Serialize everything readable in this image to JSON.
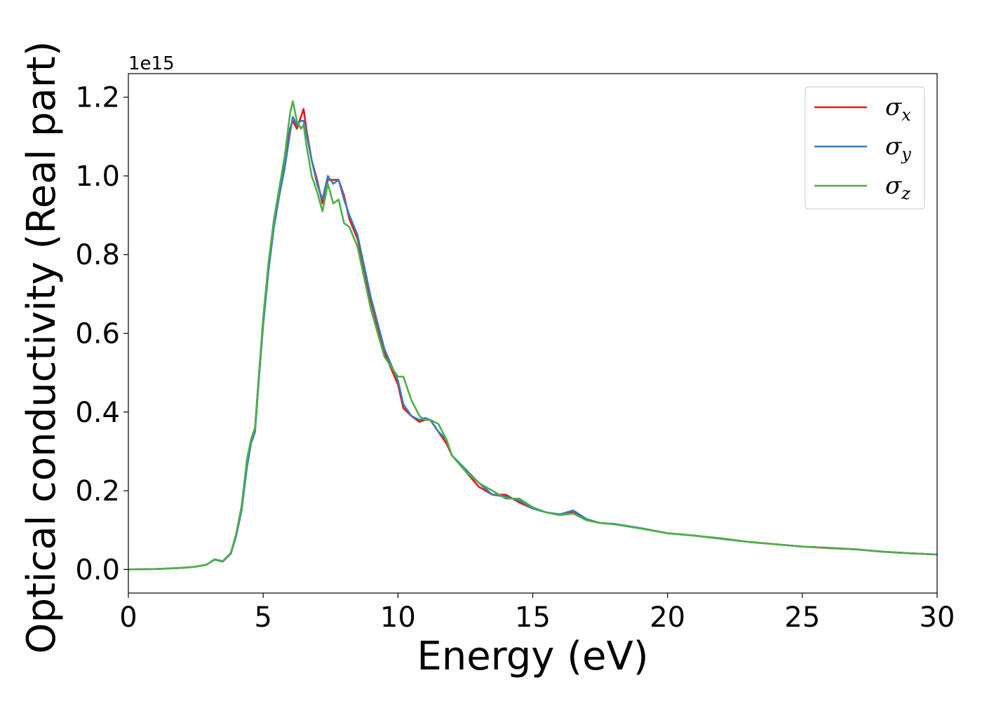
{
  "chart_data": {
    "type": "line",
    "xlabel": "Energy (eV)",
    "ylabel": "Optical conductivity (Real part)",
    "y_offset_text": "1e15",
    "xlim": [
      0,
      30
    ],
    "ylim": [
      -0.06,
      1.26
    ],
    "x_ticks": [
      0,
      5,
      10,
      15,
      20,
      25,
      30
    ],
    "x_tick_labels": [
      "0",
      "5",
      "10",
      "15",
      "20",
      "25",
      "30"
    ],
    "y_ticks": [
      0.0,
      0.2,
      0.4,
      0.6,
      0.8,
      1.0,
      1.2
    ],
    "y_tick_labels": [
      "0.0",
      "0.2",
      "0.4",
      "0.6",
      "0.8",
      "1.0",
      "1.2"
    ],
    "grid": false,
    "legend_position": "top-right",
    "series": [
      {
        "name": "σx",
        "symbol": "σ",
        "subscript": "x",
        "color": "#e41a1c",
        "x": [
          0,
          1,
          2,
          2.5,
          2.9,
          3.2,
          3.5,
          3.8,
          4.0,
          4.2,
          4.4,
          4.55,
          4.7,
          4.85,
          5.0,
          5.2,
          5.4,
          5.6,
          5.8,
          6.0,
          6.1,
          6.25,
          6.4,
          6.5,
          6.6,
          6.8,
          7.0,
          7.2,
          7.4,
          7.6,
          7.8,
          8.0,
          8.2,
          8.5,
          9.0,
          9.5,
          10.0,
          10.2,
          10.5,
          10.8,
          11.0,
          11.2,
          11.5,
          11.8,
          12.0,
          12.5,
          13.0,
          13.5,
          14.0,
          14.5,
          15.0,
          15.5,
          16.0,
          16.5,
          17.0,
          17.5,
          18.0,
          19.0,
          20.0,
          21.0,
          22.0,
          23.0,
          24.0,
          25.0,
          26.0,
          27.0,
          28.0,
          29.0,
          30.0
        ],
        "y": [
          0.0,
          0.001,
          0.004,
          0.007,
          0.012,
          0.025,
          0.02,
          0.04,
          0.09,
          0.16,
          0.27,
          0.33,
          0.36,
          0.5,
          0.63,
          0.77,
          0.88,
          0.96,
          1.03,
          1.12,
          1.14,
          1.12,
          1.15,
          1.17,
          1.12,
          1.04,
          0.99,
          0.93,
          0.99,
          0.99,
          0.99,
          0.95,
          0.89,
          0.84,
          0.68,
          0.55,
          0.47,
          0.41,
          0.39,
          0.375,
          0.38,
          0.38,
          0.35,
          0.32,
          0.29,
          0.25,
          0.21,
          0.19,
          0.19,
          0.17,
          0.155,
          0.145,
          0.14,
          0.145,
          0.125,
          0.118,
          0.115,
          0.105,
          0.092,
          0.086,
          0.078,
          0.07,
          0.064,
          0.058,
          0.054,
          0.051,
          0.045,
          0.041,
          0.038
        ]
      },
      {
        "name": "σy",
        "symbol": "σ",
        "subscript": "y",
        "color": "#377eb8",
        "x": [
          0,
          1,
          2,
          2.5,
          2.9,
          3.2,
          3.5,
          3.8,
          4.0,
          4.2,
          4.4,
          4.55,
          4.7,
          4.85,
          5.0,
          5.2,
          5.4,
          5.6,
          5.8,
          6.0,
          6.1,
          6.25,
          6.4,
          6.5,
          6.6,
          6.8,
          7.0,
          7.2,
          7.4,
          7.6,
          7.8,
          8.0,
          8.2,
          8.5,
          9.0,
          9.5,
          10.0,
          10.2,
          10.5,
          10.8,
          11.0,
          11.2,
          11.5,
          11.8,
          12.0,
          12.5,
          13.0,
          13.5,
          14.0,
          14.5,
          15.0,
          15.5,
          16.0,
          16.5,
          17.0,
          17.5,
          18.0,
          19.0,
          20.0,
          21.0,
          22.0,
          23.0,
          24.0,
          25.0,
          26.0,
          27.0,
          28.0,
          29.0,
          30.0
        ],
        "y": [
          0.0,
          0.001,
          0.004,
          0.007,
          0.012,
          0.025,
          0.02,
          0.04,
          0.085,
          0.15,
          0.26,
          0.32,
          0.35,
          0.49,
          0.62,
          0.76,
          0.87,
          0.95,
          1.02,
          1.11,
          1.15,
          1.13,
          1.14,
          1.14,
          1.11,
          1.04,
          0.98,
          0.94,
          1.0,
          0.98,
          0.99,
          0.94,
          0.9,
          0.85,
          0.69,
          0.56,
          0.48,
          0.42,
          0.39,
          0.38,
          0.385,
          0.38,
          0.35,
          0.33,
          0.29,
          0.255,
          0.22,
          0.19,
          0.185,
          0.175,
          0.155,
          0.145,
          0.14,
          0.15,
          0.128,
          0.118,
          0.116,
          0.105,
          0.092,
          0.086,
          0.078,
          0.07,
          0.064,
          0.058,
          0.055,
          0.051,
          0.045,
          0.041,
          0.038
        ]
      },
      {
        "name": "σz",
        "symbol": "σ",
        "subscript": "z",
        "color": "#4daf4a",
        "x": [
          0,
          1,
          2,
          2.5,
          2.9,
          3.2,
          3.5,
          3.8,
          4.0,
          4.2,
          4.4,
          4.55,
          4.7,
          4.85,
          5.0,
          5.2,
          5.4,
          5.6,
          5.8,
          6.0,
          6.1,
          6.25,
          6.4,
          6.5,
          6.6,
          6.8,
          7.0,
          7.2,
          7.4,
          7.6,
          7.8,
          8.0,
          8.2,
          8.5,
          9.0,
          9.5,
          10.0,
          10.2,
          10.5,
          10.8,
          11.0,
          11.2,
          11.5,
          11.8,
          12.0,
          12.5,
          13.0,
          13.5,
          14.0,
          14.5,
          15.0,
          15.5,
          16.0,
          16.5,
          17.0,
          17.5,
          18.0,
          19.0,
          20.0,
          21.0,
          22.0,
          23.0,
          24.0,
          25.0,
          26.0,
          27.0,
          28.0,
          29.0,
          30.0
        ],
        "y": [
          0.0,
          0.001,
          0.004,
          0.007,
          0.012,
          0.026,
          0.021,
          0.042,
          0.09,
          0.16,
          0.28,
          0.33,
          0.36,
          0.5,
          0.64,
          0.78,
          0.89,
          0.97,
          1.05,
          1.16,
          1.19,
          1.14,
          1.12,
          1.13,
          1.08,
          1.0,
          0.96,
          0.91,
          0.98,
          0.93,
          0.94,
          0.88,
          0.87,
          0.82,
          0.66,
          0.54,
          0.49,
          0.49,
          0.43,
          0.39,
          0.38,
          0.38,
          0.37,
          0.33,
          0.29,
          0.25,
          0.22,
          0.2,
          0.18,
          0.18,
          0.158,
          0.145,
          0.138,
          0.142,
          0.125,
          0.118,
          0.115,
          0.104,
          0.092,
          0.086,
          0.079,
          0.07,
          0.064,
          0.058,
          0.055,
          0.051,
          0.045,
          0.041,
          0.038
        ]
      }
    ]
  }
}
